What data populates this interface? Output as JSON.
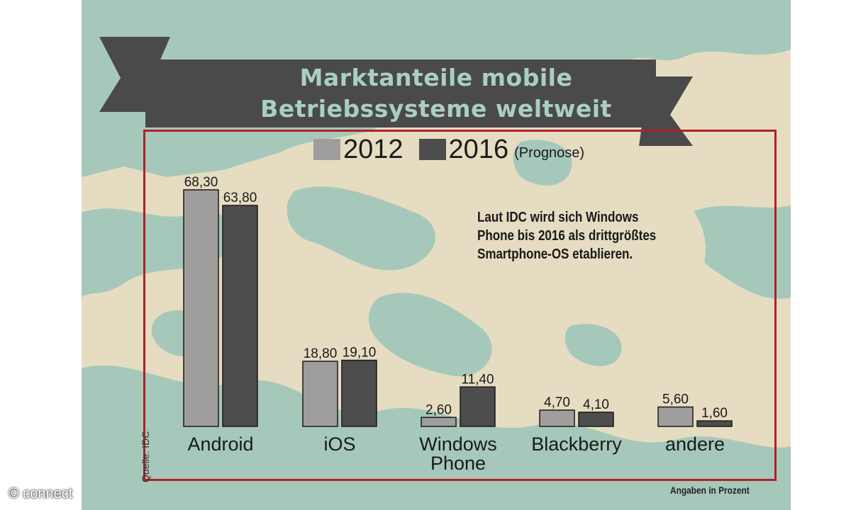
{
  "title": {
    "line1": "Marktanteile mobile",
    "line2": "Betriebssysteme weltweit"
  },
  "legend": {
    "items": [
      "2012",
      "2016"
    ],
    "note": "(Prognose)"
  },
  "annotation": "Laut IDC wird sich Windows Phone bis 2016 als drittgrößtes Smartphone-OS etablieren.",
  "source": "Quelle: IDC",
  "unit": "Angaben in Prozent",
  "copyright": "© connect",
  "colors": {
    "series_2012": "#a09e9c",
    "series_2016": "#4d4d4d",
    "ribbon": "#4a4a4a",
    "title_text": "#a9cfc1",
    "frame": "#b0202a",
    "sea": "#a6c8ba",
    "land": "#e6dcc1"
  },
  "chart_data": {
    "type": "bar",
    "categories": [
      "Android",
      "iOS",
      "Windows Phone",
      "Blackberry",
      "andere"
    ],
    "series": [
      {
        "name": "2012",
        "values": [
          68.3,
          18.8,
          2.6,
          4.7,
          5.6
        ],
        "labels": [
          "68,30",
          "18,80",
          "2,60",
          "4,70",
          "5,60"
        ]
      },
      {
        "name": "2016",
        "values": [
          63.8,
          19.1,
          11.4,
          4.1,
          1.6
        ],
        "labels": [
          "63,80",
          "19,10",
          "11,40",
          "4,10",
          "1,60"
        ]
      }
    ],
    "title": "Marktanteile mobile Betriebssysteme weltweit",
    "ylabel": "Angaben in Prozent",
    "ylim": [
      0,
      70
    ],
    "legend": "top-center",
    "grid": false
  }
}
